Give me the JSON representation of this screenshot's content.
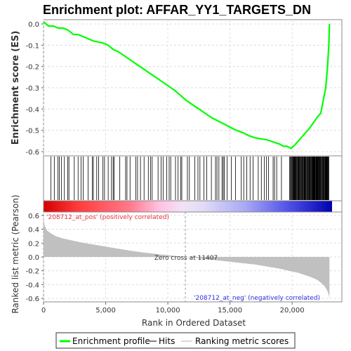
{
  "title": "Enrichment plot: AFFAR_YY1_TARGETS_DN",
  "chart_data": [
    {
      "type": "line",
      "panel": "enrichment",
      "ylabel": "Enrichment score (ES)",
      "ylim": [
        -0.62,
        0.02
      ],
      "yticks": [
        "0.0",
        "-0.1",
        "-0.2",
        "-0.3",
        "-0.4",
        "-0.5",
        "-0.6"
      ],
      "grid": true,
      "series": [
        {
          "name": "Enrichment profile",
          "color": "#00ff00",
          "x": [
            0,
            400,
            800,
            1200,
            1600,
            2000,
            2400,
            2800,
            3200,
            3600,
            4000,
            4400,
            4800,
            5200,
            5600,
            6000,
            6500,
            7000,
            7500,
            8000,
            8500,
            9000,
            9500,
            10000,
            10500,
            11000,
            11500,
            12000,
            12500,
            13000,
            13500,
            14000,
            14500,
            15000,
            15500,
            16000,
            16500,
            17000,
            17500,
            18000,
            18500,
            19000,
            19300,
            19600,
            19900,
            20200,
            20500,
            20800,
            21100,
            21400,
            21700,
            22000,
            22300,
            22500,
            22700,
            22850,
            22950,
            23000
          ],
          "y": [
            0.01,
            -0.01,
            -0.01,
            -0.02,
            -0.02,
            -0.03,
            -0.05,
            -0.05,
            -0.06,
            -0.07,
            -0.08,
            -0.085,
            -0.09,
            -0.1,
            -0.12,
            -0.13,
            -0.15,
            -0.17,
            -0.19,
            -0.21,
            -0.23,
            -0.25,
            -0.27,
            -0.29,
            -0.31,
            -0.335,
            -0.36,
            -0.38,
            -0.4,
            -0.42,
            -0.44,
            -0.455,
            -0.47,
            -0.485,
            -0.5,
            -0.51,
            -0.525,
            -0.535,
            -0.54,
            -0.545,
            -0.555,
            -0.565,
            -0.575,
            -0.575,
            -0.585,
            -0.57,
            -0.55,
            -0.53,
            -0.51,
            -0.49,
            -0.465,
            -0.44,
            -0.42,
            -0.36,
            -0.3,
            -0.2,
            -0.1,
            0.0
          ]
        }
      ]
    },
    {
      "type": "area",
      "panel": "ranked-metric",
      "xlabel": "Rank in Ordered Dataset",
      "ylabel": "Ranked list metric (Pearson)",
      "xlim": [
        0,
        24000
      ],
      "ylim": [
        -0.65,
        0.65
      ],
      "xticks": [
        "0",
        "5,000",
        "10,000",
        "15,000",
        "20,000"
      ],
      "yticks": [
        "0.6",
        "0.4",
        "0.2",
        "0.0",
        "-0.2",
        "-0.4",
        "-0.6"
      ],
      "grid": true,
      "zero_cross": 11407,
      "series": [
        {
          "name": "Ranking metric scores",
          "color": "#c0c0c0",
          "x": [
            0,
            50,
            150,
            300,
            600,
            1000,
            1500,
            2000,
            3000,
            4000,
            5000,
            6000,
            7000,
            8000,
            9000,
            10000,
            11000,
            11407,
            12000,
            13000,
            14000,
            15000,
            16000,
            17000,
            18000,
            19000,
            20000,
            20500,
            21000,
            21500,
            22000,
            22300,
            22600,
            22800,
            22950,
            23000
          ],
          "y": [
            0.62,
            0.48,
            0.43,
            0.38,
            0.34,
            0.3,
            0.27,
            0.25,
            0.21,
            0.18,
            0.15,
            0.12,
            0.09,
            0.065,
            0.045,
            0.025,
            0.008,
            0.0,
            -0.01,
            -0.03,
            -0.05,
            -0.07,
            -0.09,
            -0.11,
            -0.14,
            -0.17,
            -0.21,
            -0.23,
            -0.26,
            -0.29,
            -0.33,
            -0.37,
            -0.42,
            -0.48,
            -0.55,
            -0.6
          ]
        }
      ]
    }
  ],
  "annotations": {
    "pos_label": "'208712_at_pos' (positively correlated)",
    "neg_label": "'208712_at_neg' (negatively correlated)",
    "zero_cross_label": "Zero cross at 11407",
    "pos_color": "#e8303a",
    "neg_color": "#2e2ee0"
  },
  "legend": {
    "items": [
      {
        "label": "Enrichment profile",
        "color": "#00ff00"
      },
      {
        "label": "Hits",
        "color": "#808080"
      },
      {
        "label": "Ranking metric scores",
        "color": "#d8d8d8"
      }
    ]
  }
}
